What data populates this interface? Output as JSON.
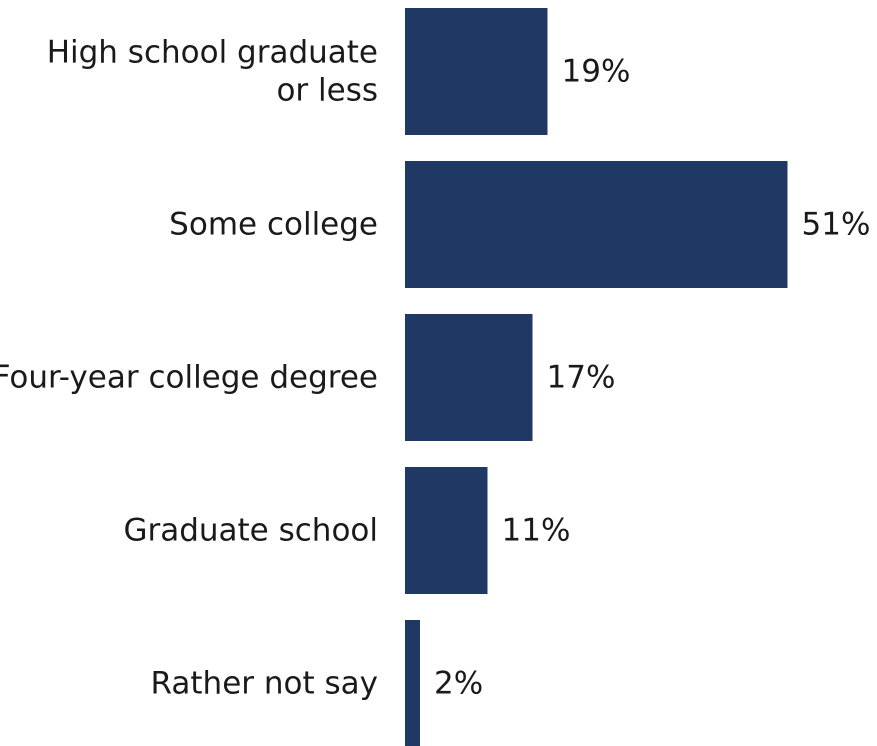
{
  "chart_data": {
    "type": "bar",
    "orientation": "horizontal",
    "categories": [
      [
        "High school graduate",
        "or less"
      ],
      [
        "Some college"
      ],
      [
        "Four-year college degree"
      ],
      [
        "Graduate school"
      ],
      [
        "Rather not say"
      ]
    ],
    "values": [
      19,
      51,
      17,
      11,
      2
    ],
    "value_labels": [
      "19%",
      "51%",
      "17%",
      "11%",
      "2%"
    ],
    "unit": "%",
    "title": "",
    "xlabel": "",
    "ylabel": "",
    "grid": false,
    "legend": "none",
    "bar_color": "#1f3864"
  }
}
